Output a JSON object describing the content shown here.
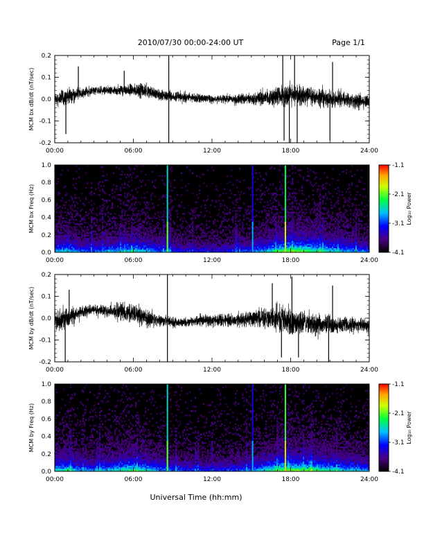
{
  "header": {
    "title": "2010/07/30  00:00-24:00 UT",
    "page": "Page 1/1"
  },
  "footer": {
    "xlabel": "Universal Time (hh:mm)"
  },
  "colors": {
    "trace": "#000000",
    "spectrogram_background": "#000000"
  },
  "chart_data": [
    {
      "id": "bx-ts",
      "type": "line",
      "ylabel": "MCM bx dB/dt (nT/sec)",
      "xlim": [
        0,
        24
      ],
      "ylim": [
        -0.2,
        0.2
      ],
      "xticks": [
        "00:00",
        "06:00",
        "12:00",
        "18:00",
        "24:00"
      ],
      "yticks": [
        "-0.2",
        "-0.1",
        "0.0",
        "0.1",
        "0.2"
      ],
      "envelope": {
        "x_hours": [
          0,
          1,
          2,
          3,
          4,
          5,
          6,
          7,
          8,
          9,
          10,
          11,
          12,
          13,
          14,
          15,
          16,
          17,
          18,
          19,
          20,
          21,
          22,
          23,
          24
        ],
        "center": [
          0.0,
          0.01,
          0.03,
          0.04,
          0.04,
          0.04,
          0.04,
          0.04,
          0.02,
          0.01,
          0.01,
          0.005,
          0.0,
          0.0,
          0.0,
          0.0,
          0.005,
          0.01,
          0.02,
          0.015,
          0.01,
          0.0,
          0.0,
          -0.01,
          -0.01
        ],
        "amplitude": [
          0.03,
          0.04,
          0.025,
          0.02,
          0.02,
          0.025,
          0.03,
          0.035,
          0.03,
          0.025,
          0.025,
          0.02,
          0.02,
          0.02,
          0.025,
          0.03,
          0.04,
          0.05,
          0.055,
          0.05,
          0.045,
          0.04,
          0.035,
          0.035,
          0.03
        ]
      },
      "spikes": [
        {
          "x": 0.85,
          "y": -0.16
        },
        {
          "x": 1.8,
          "y": 0.15
        },
        {
          "x": 5.3,
          "y": 0.13
        },
        {
          "x": 8.7,
          "y": 0.2
        },
        {
          "x": 8.7,
          "y": -0.2
        },
        {
          "x": 17.4,
          "y": 0.2
        },
        {
          "x": 17.5,
          "y": -0.19
        },
        {
          "x": 17.9,
          "y": -0.2
        },
        {
          "x": 18.3,
          "y": 0.2
        },
        {
          "x": 18.5,
          "y": -0.2
        },
        {
          "x": 21.0,
          "y": -0.19
        },
        {
          "x": 21.2,
          "y": 0.17
        }
      ]
    },
    {
      "id": "bx-spec",
      "type": "heatmap",
      "ylabel": "MCM bx Freq (Hz)",
      "xlim": [
        0,
        24
      ],
      "ylim": [
        0.0,
        1.0
      ],
      "xticks": [
        "00:00",
        "06:00",
        "12:00",
        "18:00",
        "24:00"
      ],
      "yticks": [
        "0.0",
        "0.2",
        "0.4",
        "0.6",
        "0.8",
        "1.0"
      ],
      "colorbar": {
        "label": "Log₁₀ Power",
        "range": [
          -4.1,
          -1.1
        ],
        "ticks": [
          "-1.1",
          "-2.1",
          "-3.1",
          "-4.1"
        ]
      },
      "vertical_lines": [
        {
          "x": 8.6,
          "level": -2.6
        },
        {
          "x": 15.1,
          "level": -3.3
        },
        {
          "x": 17.6,
          "level": -2.3
        }
      ]
    },
    {
      "id": "by-ts",
      "type": "line",
      "ylabel": "MCM by dB/dt (nT/sec)",
      "xlim": [
        0,
        24
      ],
      "ylim": [
        -0.2,
        0.2
      ],
      "xticks": [
        "00:00",
        "06:00",
        "12:00",
        "18:00",
        "24:00"
      ],
      "yticks": [
        "-0.2",
        "-0.1",
        "0.0",
        "0.1",
        "0.2"
      ],
      "envelope": {
        "x_hours": [
          0,
          1,
          2,
          3,
          4,
          5,
          6,
          7,
          8,
          9,
          10,
          11,
          12,
          13,
          14,
          15,
          16,
          17,
          18,
          19,
          20,
          21,
          22,
          23,
          24
        ],
        "center": [
          -0.01,
          0.0,
          0.03,
          0.04,
          0.03,
          0.03,
          0.02,
          0.0,
          -0.01,
          -0.02,
          -0.02,
          -0.01,
          -0.01,
          -0.01,
          -0.01,
          0.0,
          0.0,
          0.0,
          -0.02,
          -0.02,
          -0.03,
          -0.03,
          -0.03,
          -0.03,
          -0.04
        ],
        "amplitude": [
          0.045,
          0.05,
          0.03,
          0.025,
          0.03,
          0.045,
          0.05,
          0.04,
          0.03,
          0.025,
          0.02,
          0.025,
          0.03,
          0.03,
          0.035,
          0.04,
          0.05,
          0.06,
          0.06,
          0.055,
          0.05,
          0.045,
          0.04,
          0.035,
          0.035
        ]
      },
      "spikes": [
        {
          "x": 0.8,
          "y": -0.2
        },
        {
          "x": 1.1,
          "y": 0.13
        },
        {
          "x": 8.6,
          "y": 0.2
        },
        {
          "x": 8.6,
          "y": -0.2
        },
        {
          "x": 16.6,
          "y": 0.16
        },
        {
          "x": 17.3,
          "y": -0.18
        },
        {
          "x": 18.1,
          "y": 0.19
        },
        {
          "x": 18.6,
          "y": -0.18
        },
        {
          "x": 20.9,
          "y": -0.2
        },
        {
          "x": 21.2,
          "y": 0.15
        }
      ]
    },
    {
      "id": "by-spec",
      "type": "heatmap",
      "ylabel": "MCM by Freq (Hz)",
      "xlim": [
        0,
        24
      ],
      "ylim": [
        0.0,
        1.0
      ],
      "xticks": [
        "00:00",
        "06:00",
        "12:00",
        "18:00",
        "24:00"
      ],
      "yticks": [
        "0.0",
        "0.2",
        "0.4",
        "0.6",
        "0.8",
        "1.0"
      ],
      "colorbar": {
        "label": "Log₁₀ Power",
        "range": [
          -4.1,
          -1.1
        ],
        "ticks": [
          "-1.1",
          "-2.1",
          "-3.1",
          "-4.1"
        ]
      },
      "vertical_lines": [
        {
          "x": 8.6,
          "level": -2.6
        },
        {
          "x": 15.1,
          "level": -3.3
        },
        {
          "x": 17.6,
          "level": -2.2
        }
      ]
    }
  ]
}
